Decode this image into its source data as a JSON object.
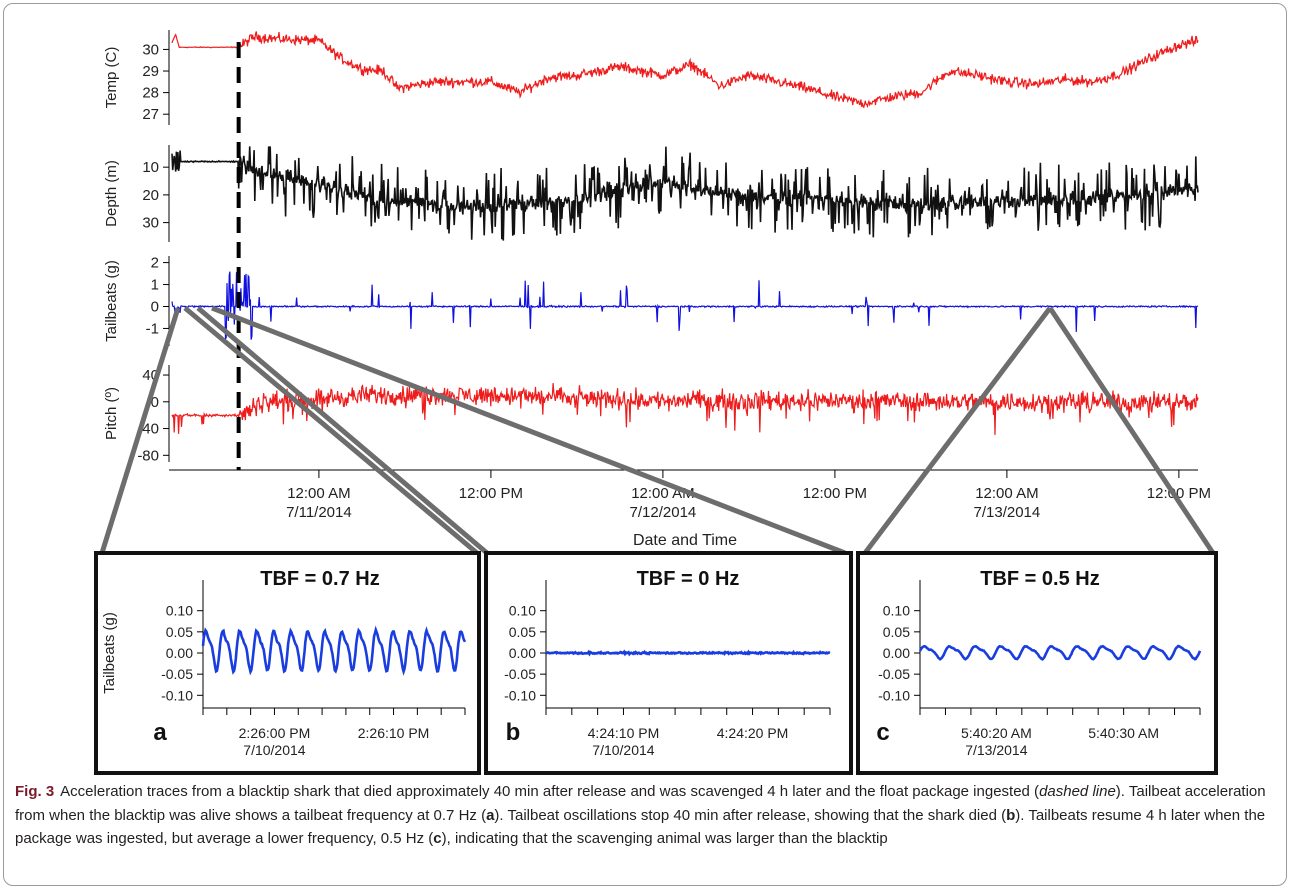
{
  "chart_data": [
    {
      "type": "line",
      "panel": "main",
      "xlabel": "Date and Time",
      "x_range": [
        "2014-07-10 13:45",
        "2014-07-13 13:20"
      ],
      "x_ticks": [
        {
          "t": "2014-07-11 00:00",
          "label": [
            "12:00 AM",
            "7/11/2014"
          ]
        },
        {
          "t": "2014-07-11 12:00",
          "label": [
            "12:00 PM"
          ]
        },
        {
          "t": "2014-07-12 00:00",
          "label": [
            "12:00 AM",
            "7/12/2014"
          ]
        },
        {
          "t": "2014-07-12 12:00",
          "label": [
            "12:00 PM"
          ]
        },
        {
          "t": "2014-07-13 00:00",
          "label": [
            "12:00 AM",
            "7/13/2014"
          ]
        },
        {
          "t": "2014-07-13 12:00",
          "label": [
            "12:00 PM"
          ]
        }
      ],
      "ingestion_marker": {
        "t": "2014-07-10 18:24",
        "style": "dashed"
      },
      "subplots": [
        {
          "ylabel": "Temp (C)",
          "yticks": [
            27,
            28,
            29,
            30
          ],
          "ylim": [
            26.5,
            30.9
          ],
          "inverted": false,
          "color": "#ee1c1c",
          "points": [
            [
              "2014-07-10 13:45",
              30.3
            ],
            [
              "2014-07-10 14:00",
              30.7
            ],
            [
              "2014-07-10 14:15",
              30.1
            ],
            [
              "2014-07-10 18:24",
              30.1
            ],
            [
              "2014-07-10 19:30",
              30.6
            ],
            [
              "2014-07-10 21:00",
              30.5
            ],
            [
              "2014-07-11 00:00",
              30.4
            ],
            [
              "2014-07-11 01:30",
              29.6
            ],
            [
              "2014-07-11 03:00",
              29.1
            ],
            [
              "2014-07-11 04:30",
              29.0
            ],
            [
              "2014-07-11 05:30",
              28.2
            ],
            [
              "2014-07-11 08:00",
              28.5
            ],
            [
              "2014-07-11 12:00",
              28.5
            ],
            [
              "2014-07-11 14:00",
              28.0
            ],
            [
              "2014-07-11 16:00",
              28.7
            ],
            [
              "2014-07-11 18:00",
              28.8
            ],
            [
              "2014-07-11 21:00",
              29.2
            ],
            [
              "2014-07-12 00:00",
              28.8
            ],
            [
              "2014-07-12 02:00",
              29.3
            ],
            [
              "2014-07-12 04:00",
              28.3
            ],
            [
              "2014-07-12 06:00",
              28.8
            ],
            [
              "2014-07-12 08:00",
              28.5
            ],
            [
              "2014-07-12 10:00",
              28.2
            ],
            [
              "2014-07-12 12:00",
              27.8
            ],
            [
              "2014-07-12 14:00",
              27.5
            ],
            [
              "2014-07-12 16:00",
              27.8
            ],
            [
              "2014-07-12 18:00",
              28.0
            ],
            [
              "2014-07-12 20:00",
              29.0
            ],
            [
              "2014-07-12 22:00",
              28.8
            ],
            [
              "2014-07-13 00:00",
              28.5
            ],
            [
              "2014-07-13 02:00",
              28.4
            ],
            [
              "2014-07-13 04:00",
              28.6
            ],
            [
              "2014-07-13 06:00",
              28.5
            ],
            [
              "2014-07-13 08:00",
              28.9
            ],
            [
              "2014-07-13 10:00",
              29.6
            ],
            [
              "2014-07-13 12:00",
              30.2
            ],
            [
              "2014-07-13 13:20",
              30.4
            ]
          ]
        },
        {
          "ylabel": "Depth (m)",
          "yticks": [
            10,
            20,
            30
          ],
          "ylim": [
            2,
            37
          ],
          "inverted": true,
          "color": "#111111",
          "points": [
            [
              "2014-07-10 13:45",
              4
            ],
            [
              "2014-07-10 14:15",
              8
            ],
            [
              "2014-07-10 18:24",
              8
            ],
            [
              "2014-07-10 20:00",
              12
            ],
            [
              "2014-07-11 00:00",
              16
            ],
            [
              "2014-07-11 04:00",
              22
            ],
            [
              "2014-07-11 08:00",
              24
            ],
            [
              "2014-07-11 12:00",
              24
            ],
            [
              "2014-07-11 18:00",
              22
            ],
            [
              "2014-07-12 00:00",
              15
            ],
            [
              "2014-07-12 02:00",
              18
            ],
            [
              "2014-07-12 06:00",
              20
            ],
            [
              "2014-07-12 12:00",
              22
            ],
            [
              "2014-07-12 18:00",
              24
            ],
            [
              "2014-07-13 00:00",
              22
            ],
            [
              "2014-07-13 06:00",
              21
            ],
            [
              "2014-07-13 12:00",
              19
            ],
            [
              "2014-07-13 13:20",
              18
            ]
          ]
        },
        {
          "ylabel": "Tailbeats (g)",
          "yticks": [
            -1,
            0,
            1,
            2
          ],
          "ylim": [
            -1.8,
            2.3
          ],
          "inverted": false,
          "color": "#1010e0",
          "points": [
            [
              "2014-07-10 13:45",
              0
            ],
            [
              "2014-07-10 18:30",
              1.6
            ],
            [
              "2014-07-10 19:00",
              0
            ],
            [
              "2014-07-11 10:00",
              -1.0
            ],
            [
              "2014-07-12 06:00",
              -1.3
            ],
            [
              "2014-07-12 10:00",
              0
            ],
            [
              "2014-07-13 08:00",
              -1.2
            ],
            [
              "2014-07-13 13:20",
              0
            ]
          ]
        },
        {
          "ylabel": "Pitch (º)",
          "yticks": [
            -80,
            -40,
            0,
            40
          ],
          "ylim": [
            -90,
            55
          ],
          "inverted": false,
          "color": "#ee1c1c",
          "points": [
            [
              "2014-07-10 13:45",
              -20
            ],
            [
              "2014-07-10 18:24",
              -20
            ],
            [
              "2014-07-10 20:00",
              0
            ],
            [
              "2014-07-11 04:00",
              10
            ],
            [
              "2014-07-11 12:00",
              10
            ],
            [
              "2014-07-12 00:00",
              2
            ],
            [
              "2014-07-12 12:00",
              2
            ],
            [
              "2014-07-13 00:00",
              0
            ],
            [
              "2014-07-13 13:20",
              0
            ]
          ]
        }
      ]
    },
    {
      "type": "line",
      "panel": "a",
      "title": "TBF = 0.7 Hz",
      "ylabel": "Tailbeats (g)",
      "yticks": [
        "0.10",
        "0.05",
        "0.00",
        "-0.05",
        "-0.10"
      ],
      "ylim": [
        -0.13,
        0.13
      ],
      "x_ticks": [
        {
          "t": "2:26:00 PM",
          "label": [
            "2:26:00 PM",
            "7/10/2014"
          ]
        },
        {
          "t": "2:26:10 PM",
          "label": [
            "2:26:10 PM"
          ]
        }
      ],
      "frequency_hz": 0.7,
      "amplitude": [
        -0.045,
        0.065
      ],
      "duration_s": 22,
      "color": "#1a3de0"
    },
    {
      "type": "line",
      "panel": "b",
      "title": "TBF = 0 Hz",
      "yticks": [
        "0.10",
        "0.05",
        "0.00",
        "-0.05",
        "-0.10"
      ],
      "ylim": [
        -0.13,
        0.13
      ],
      "x_ticks": [
        {
          "t": "4:24:10 PM",
          "label": [
            "4:24:10 PM",
            "7/10/2014"
          ]
        },
        {
          "t": "4:24:20 PM",
          "label": [
            "4:24:20 PM"
          ]
        }
      ],
      "frequency_hz": 0,
      "amplitude": [
        -0.005,
        0.005
      ],
      "duration_s": 22,
      "color": "#1a3de0"
    },
    {
      "type": "line",
      "panel": "c",
      "title": "TBF = 0.5 Hz",
      "yticks": [
        "0.10",
        "0.05",
        "0.00",
        "-0.05",
        "-0.10"
      ],
      "ylim": [
        -0.13,
        0.13
      ],
      "x_ticks": [
        {
          "t": "5:40:20 AM",
          "label": [
            "5:40:20 AM",
            "7/13/2014"
          ]
        },
        {
          "t": "5:40:30 AM",
          "label": [
            "5:40:30 AM"
          ]
        }
      ],
      "frequency_hz": 0.5,
      "amplitude": [
        -0.015,
        0.02
      ],
      "duration_s": 22,
      "color": "#1a3de0"
    }
  ],
  "caption": {
    "label": "Fig. 3",
    "s1": "Acceleration traces from a blacktip shark that died approximately 40 min after release and was scavenged 4 h later and the float package ingested (",
    "s1_em": "dashed line",
    "s2": "). Tailbeat acceleration from when the blacktip was alive shows a tailbeat frequency at 0.7 Hz (",
    "a": "a",
    "s3": "). Tailbeat oscillations stop 40 min after release, showing that the shark died (",
    "b": "b",
    "s4": "). Tailbeats resume 4 h later when the package was ingested, but average a lower frequency, 0.5 Hz (",
    "c": "c",
    "s5": "), indicating that the scavenging animal was larger than the blacktip"
  }
}
